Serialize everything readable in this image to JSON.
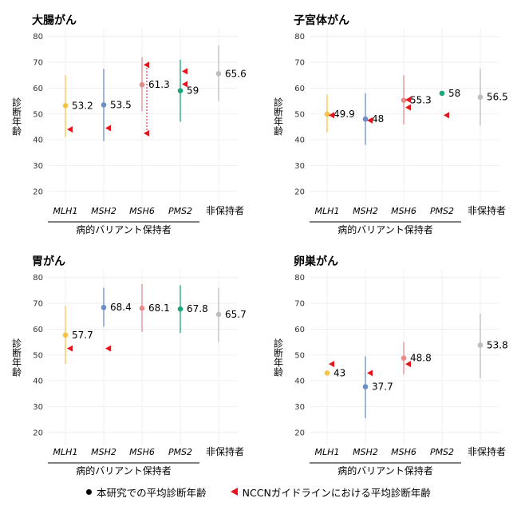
{
  "legend": {
    "study_label": "本研究での平均診断年齢",
    "nccn_label": "NCCNガイドラインにおける平均診断年齢"
  },
  "colors": {
    "MLH1": "#f6c244",
    "MSH2": "#6a8fc7",
    "MSH6": "#e98a8a",
    "PMS2": "#1aa67a",
    "非保持者": "#bdbdbd",
    "nccn": "#e8141b",
    "grid": "#ececec"
  },
  "chart_data": [
    {
      "type": "scatter",
      "title": "大腸がん",
      "ylabel": "診断年齢",
      "xgroup_label": "病的バリアント保持者",
      "ylim": [
        15,
        83
      ],
      "yticks": [
        20,
        30,
        40,
        50,
        60,
        70,
        80
      ],
      "categories": [
        "MLH1",
        "MSH2",
        "MSH6",
        "PMS2",
        "非保持者"
      ],
      "study": {
        "mean": [
          53.2,
          53.5,
          61.3,
          59,
          65.6
        ],
        "range_low": [
          41,
          39.5,
          51,
          47,
          55
        ],
        "range_high": [
          65,
          67.5,
          72,
          71,
          76.5
        ]
      },
      "nccn": {
        "values": [
          [
            44
          ],
          [
            44.5
          ],
          [
            69,
            42.5
          ],
          [
            66.5,
            61.5
          ],
          []
        ],
        "dashed_range": [
          null,
          null,
          [
            42.5,
            69
          ],
          null,
          null
        ]
      }
    },
    {
      "type": "scatter",
      "title": "子宮体がん",
      "ylabel": "診断年齢",
      "xgroup_label": "病的バリアント保持者",
      "ylim": [
        15,
        83
      ],
      "yticks": [
        20,
        30,
        40,
        50,
        60,
        70,
        80
      ],
      "categories": [
        "MLH1",
        "MSH2",
        "MSH6",
        "PMS2",
        "非保持者"
      ],
      "study": {
        "mean": [
          49.9,
          48,
          55.3,
          58,
          56.5
        ],
        "range_low": [
          43,
          38,
          46,
          null,
          45.5
        ],
        "range_high": [
          57.5,
          58,
          65,
          null,
          67.5
        ]
      },
      "nccn": {
        "values": [
          [
            49.5
          ],
          [
            47.5
          ],
          [
            55.5,
            52.5
          ],
          [
            49.5
          ],
          []
        ],
        "dashed_range": [
          null,
          null,
          null,
          null,
          null
        ]
      }
    },
    {
      "type": "scatter",
      "title": "胃がん",
      "ylabel": "診断年齢",
      "xgroup_label": "病的バリアント保持者",
      "ylim": [
        15,
        83
      ],
      "yticks": [
        20,
        30,
        40,
        50,
        60,
        70,
        80
      ],
      "categories": [
        "MLH1",
        "MSH2",
        "MSH6",
        "PMS2",
        "非保持者"
      ],
      "study": {
        "mean": [
          57.7,
          68.4,
          68.1,
          67.8,
          65.7
        ],
        "range_low": [
          46.5,
          61,
          59,
          58.5,
          55
        ],
        "range_high": [
          69,
          76,
          77.5,
          77,
          76
        ]
      },
      "nccn": {
        "values": [
          [
            52.5
          ],
          [
            52.5
          ],
          [],
          [],
          []
        ],
        "dashed_range": [
          null,
          null,
          null,
          null,
          null
        ]
      }
    },
    {
      "type": "scatter",
      "title": "卵巣がん",
      "ylabel": "診断年齢",
      "xgroup_label": "病的バリアント保持者",
      "ylim": [
        15,
        83
      ],
      "yticks": [
        20,
        30,
        40,
        50,
        60,
        70,
        80
      ],
      "categories": [
        "MLH1",
        "MSH2",
        "MSH6",
        "PMS2",
        "非保持者"
      ],
      "study": {
        "mean": [
          43,
          37.7,
          48.8,
          null,
          53.8
        ],
        "range_low": [
          null,
          25.5,
          42.5,
          null,
          41
        ],
        "range_high": [
          null,
          49.5,
          55,
          null,
          66
        ]
      },
      "nccn": {
        "values": [
          [
            46.5
          ],
          [
            43
          ],
          [
            46.5
          ],
          [],
          []
        ],
        "dashed_range": [
          null,
          null,
          null,
          null,
          null
        ]
      }
    }
  ]
}
